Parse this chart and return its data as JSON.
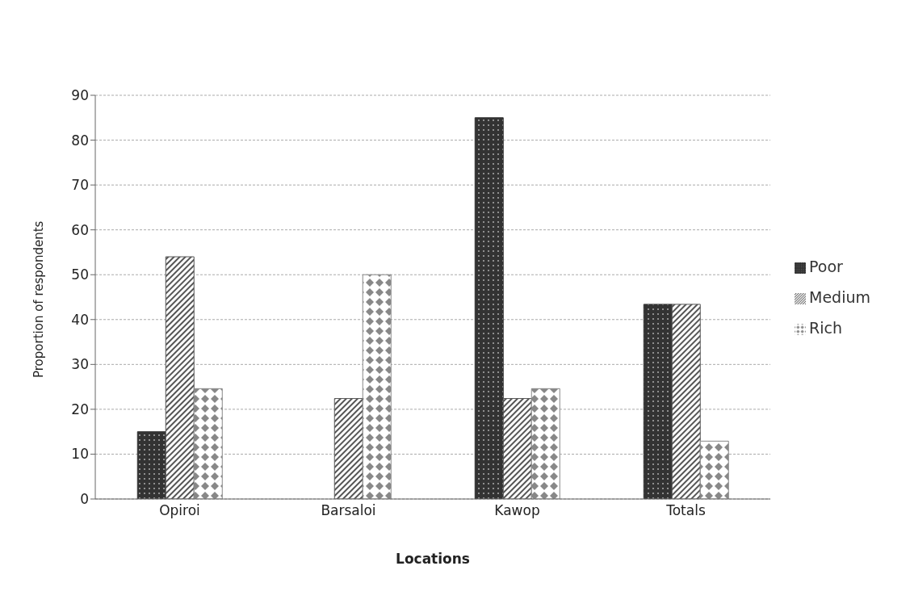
{
  "chart_data": {
    "type": "bar",
    "xlabel": "Locations",
    "ylabel": "Proportion of respondents",
    "categories": [
      "Opiroi",
      "Barsaloi",
      "Kawop",
      "Totals"
    ],
    "series": [
      {
        "name": "Poor",
        "color": "#333333",
        "values": [
          15,
          0,
          85,
          43.4
        ]
      },
      {
        "name": "Medium",
        "color": "#555555",
        "values": [
          54,
          22.4,
          22.4,
          43.4
        ]
      },
      {
        "name": "Rich",
        "color": "#888888",
        "values": [
          24.6,
          50,
          24.6,
          12.9
        ]
      }
    ],
    "ylim": [
      0,
      90
    ],
    "yticks": [
      0,
      10,
      20,
      30,
      40,
      50,
      60,
      70,
      80,
      90
    ],
    "grid": "y",
    "legend": "right"
  }
}
